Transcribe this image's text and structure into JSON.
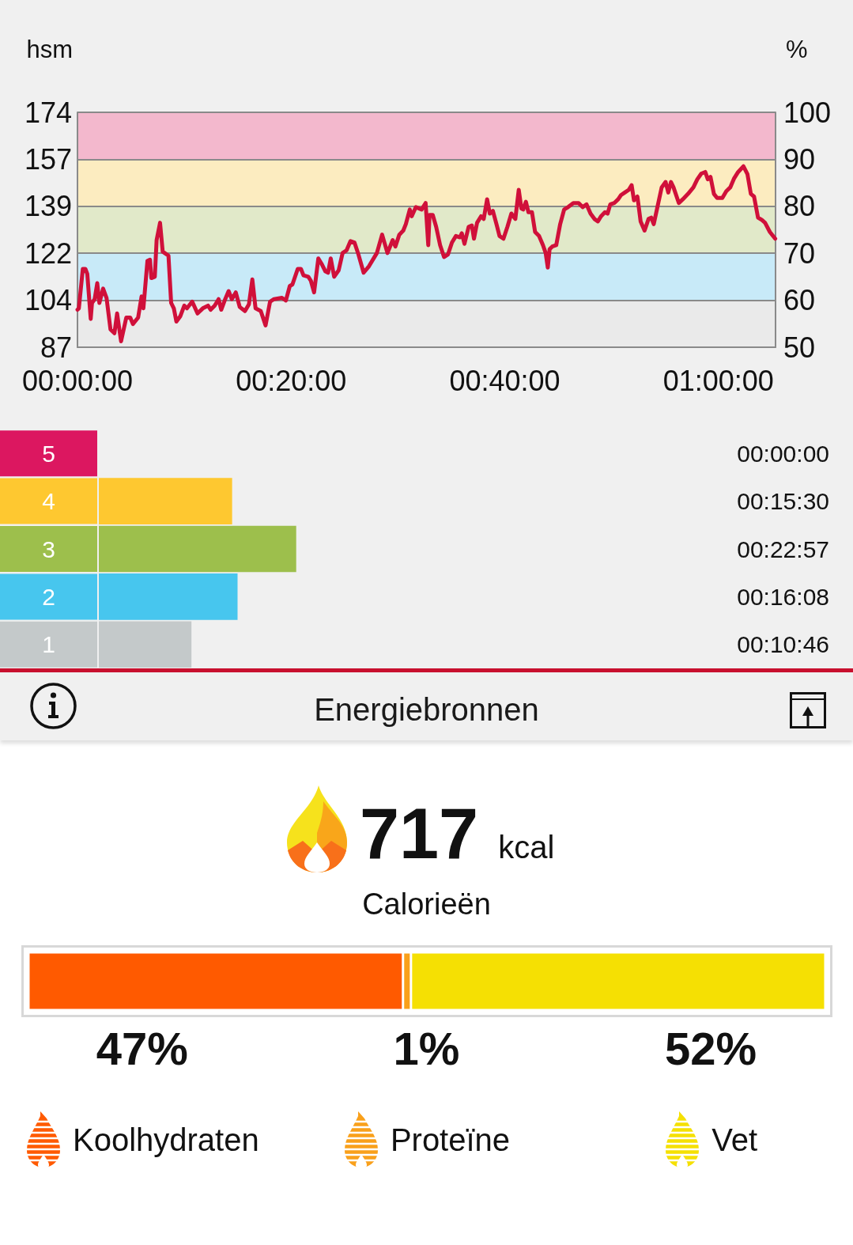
{
  "chart_data": [
    {
      "type": "line",
      "ylabel": "hsm",
      "y2label": "%",
      "x": [
        0,
        0.13,
        0.5,
        0.74,
        0.92,
        1.24,
        1.36,
        1.61,
        1.85,
        2.05,
        2.4,
        2.72,
        3.09,
        3.46,
        3.71,
        4.08,
        4.57,
        4.94,
        5.19,
        5.68,
        6,
        6.17,
        6.55,
        6.79,
        6.92,
        7.24,
        7.41,
        7.73,
        7.98,
        8.52,
        8.77,
        9.02,
        9.26,
        9.63,
        10,
        10.25,
        10.74,
        11.24,
        11.73,
        12.22,
        12.47,
        12.84,
        13.21,
        13.46,
        13.83,
        14.15,
        14.45,
        14.82,
        15.19,
        15.68,
        16.05,
        16.37,
        16.67,
        17.16,
        17.61,
        18.03,
        18.4,
        19.14,
        19.51,
        19.88,
        20.12,
        20.62,
        20.92,
        21.16,
        21.61,
        21.85,
        22.15,
        22.55,
        22.84,
        23.21,
        23.46,
        23.71,
        24.03,
        24.45,
        24.82,
        25.19,
        25.56,
        25.93,
        26.3,
        26.79,
        27.29,
        28.03,
        28.52,
        29.02,
        29.51,
        29.76,
        30.13,
        30.5,
        30.74,
        31.11,
        31.29,
        31.68,
        32.22,
        32.59,
        32.84,
        32.96,
        33.26,
        33.58,
        33.95,
        34.32,
        34.69,
        35.06,
        35.43,
        35.8,
        35.98,
        36.23,
        36.62,
        36.92,
        37.12,
        37.41,
        37.78,
        38.03,
        38.35,
        38.6,
        38.89,
        39.26,
        39.51,
        39.88,
        40.25,
        40.62,
        40.99,
        41.31,
        41.56,
        41.73,
        41.98,
        42.22,
        42.55,
        42.84,
        43.21,
        43.58,
        43.83,
        44.03,
        44.2,
        44.45,
        44.82,
        45.19,
        45.56,
        45.93,
        46.42,
        46.92,
        47.29,
        47.66,
        48.03,
        48.4,
        48.72,
        49.01,
        49.38,
        49.63,
        49.88,
        50.25,
        50.62,
        50.87,
        51.24,
        51.61,
        51.88,
        52.1,
        52.42,
        52.72,
        53.09,
        53.46,
        53.71,
        53.95,
        54.32,
        54.69,
        55.06,
        55.31,
        55.56,
        55.8,
        56.3,
        56.67,
        57.16,
        57.66,
        58.03,
        58.4,
        58.77,
        59.01,
        59.26,
        59.58,
        59.88,
        60.37,
        60.74,
        61.11,
        61.48,
        61.85,
        62.35,
        62.72,
        63.04,
        63.34,
        63.71,
        64.08,
        64.37,
        64.82,
        65.32
      ],
      "values": [
        100.9,
        101.4,
        116,
        116,
        114.1,
        97.5,
        103.4,
        104.8,
        110.7,
        103.4,
        108.7,
        105.3,
        93.6,
        92.2,
        99.5,
        89.2,
        98,
        98,
        95.6,
        98,
        105.8,
        101.4,
        119,
        119.4,
        112.6,
        113.1,
        126.7,
        133.1,
        122.4,
        120.9,
        103.4,
        101.4,
        96.5,
        98.5,
        102.4,
        101.4,
        103.9,
        99.5,
        101.4,
        102.4,
        100.9,
        102.4,
        104.8,
        100.9,
        104.8,
        107.8,
        104.8,
        107.3,
        101.9,
        100.4,
        102.9,
        112.1,
        101.4,
        100.4,
        95.1,
        103.9,
        104.8,
        105.3,
        104.3,
        109.7,
        110.2,
        116,
        116,
        113.6,
        113.1,
        111.6,
        107.3,
        119.9,
        118,
        115.1,
        114.6,
        119.9,
        113.1,
        115.5,
        121.9,
        122.9,
        126.3,
        125.8,
        121.4,
        114.6,
        117,
        121.9,
        128.7,
        121.9,
        126.7,
        124.3,
        128.7,
        130.2,
        132.6,
        138,
        135.5,
        138.9,
        138,
        140.4,
        124.8,
        136,
        136,
        131.6,
        124.8,
        120.4,
        121.4,
        125.8,
        128.2,
        127.7,
        129.2,
        125.3,
        131.6,
        132.1,
        127.2,
        133.1,
        135.5,
        134.5,
        141.8,
        136.5,
        137.5,
        132.1,
        128.2,
        127.2,
        131.6,
        136.5,
        134.5,
        145.3,
        138.4,
        138,
        140.9,
        137,
        137,
        129.7,
        128.2,
        124.8,
        121.9,
        116.5,
        123.3,
        124.3,
        124.8,
        132.6,
        138,
        138.9,
        140.4,
        140.4,
        138.9,
        139.9,
        136.5,
        134.5,
        133.6,
        135.5,
        137,
        136.5,
        139.9,
        140.4,
        141.8,
        143.3,
        144.3,
        145.3,
        147,
        141.4,
        142.8,
        133.6,
        130.2,
        134.5,
        135,
        132.6,
        139.4,
        146.2,
        148.2,
        144.3,
        148.2,
        146.2,
        140.4,
        141.8,
        143.8,
        146.2,
        149.2,
        151.3,
        151.9,
        149.2,
        150.1,
        143.8,
        142.3,
        142.3,
        144.8,
        146.2,
        149.6,
        151.9,
        154,
        151.1,
        143.8,
        142.8,
        135,
        134.1,
        133.1,
        129.7,
        127.2
      ],
      "color": "#d0103a",
      "xlim": [
        0,
        65.35
      ],
      "xticks": [
        {
          "value": 0,
          "label": "00:00:00"
        },
        {
          "value": 20,
          "label": "00:20:00"
        },
        {
          "value": 40,
          "label": "00:40:00"
        },
        {
          "value": 60,
          "label": "01:00:00"
        }
      ],
      "ylim": [
        87,
        174
      ],
      "yticks": [
        87,
        {
          "value": 104.4,
          "label": "104"
        },
        {
          "value": 121.8,
          "label": "122"
        },
        {
          "value": 139.2,
          "label": "139"
        },
        {
          "value": 156.6,
          "label": "157"
        },
        174
      ],
      "y2lim": [
        50,
        100
      ],
      "y2ticks": [
        50,
        60,
        70,
        80,
        90,
        100
      ],
      "bands": [
        {
          "axis": "y2",
          "from": 90,
          "to": 100,
          "color": "#f3b8cd"
        },
        {
          "axis": "y2",
          "from": 80,
          "to": 90,
          "color": "#fcecc0"
        },
        {
          "axis": "y2",
          "from": 70,
          "to": 80,
          "color": "#e1e9c9"
        },
        {
          "axis": "y2",
          "from": 60,
          "to": 70,
          "color": "#c8eaf8"
        },
        {
          "axis": "y2",
          "from": 50,
          "to": 60,
          "color": "#eaeaea"
        }
      ],
      "grid": "y"
    },
    {
      "type": "bar",
      "orientation": "horizontal",
      "categories": [
        "5",
        "4",
        "3",
        "2",
        "1"
      ],
      "values": [
        0,
        15.5,
        22.95,
        16.13,
        10.77
      ],
      "colors": [
        "#dc1760",
        "#fec830",
        "#9dbf4c",
        "#47c6ee",
        "#c4c9ca"
      ],
      "value_labels": [
        "00:00:00",
        "00:15:30",
        "00:22:57",
        "00:16:08",
        "00:10:46"
      ]
    },
    {
      "type": "bar",
      "orientation": "horizontal",
      "stacked": true,
      "title": "Energiebronnen",
      "annotations": [
        "717 kcal",
        "Calorieën"
      ],
      "categories": [
        null
      ],
      "series": [
        {
          "name": "Koolhydraten",
          "color": "#ff5a00",
          "values": [
            47
          ],
          "value_labels": [
            "47%"
          ]
        },
        {
          "name": "Proteïne",
          "color": "#f9a01b",
          "values": [
            1
          ],
          "value_labels": [
            "1%"
          ]
        },
        {
          "name": "Vet",
          "color": "#f5e003",
          "values": [
            52
          ],
          "value_labels": [
            "52%"
          ]
        }
      ],
      "legend": "bottom"
    }
  ]
}
